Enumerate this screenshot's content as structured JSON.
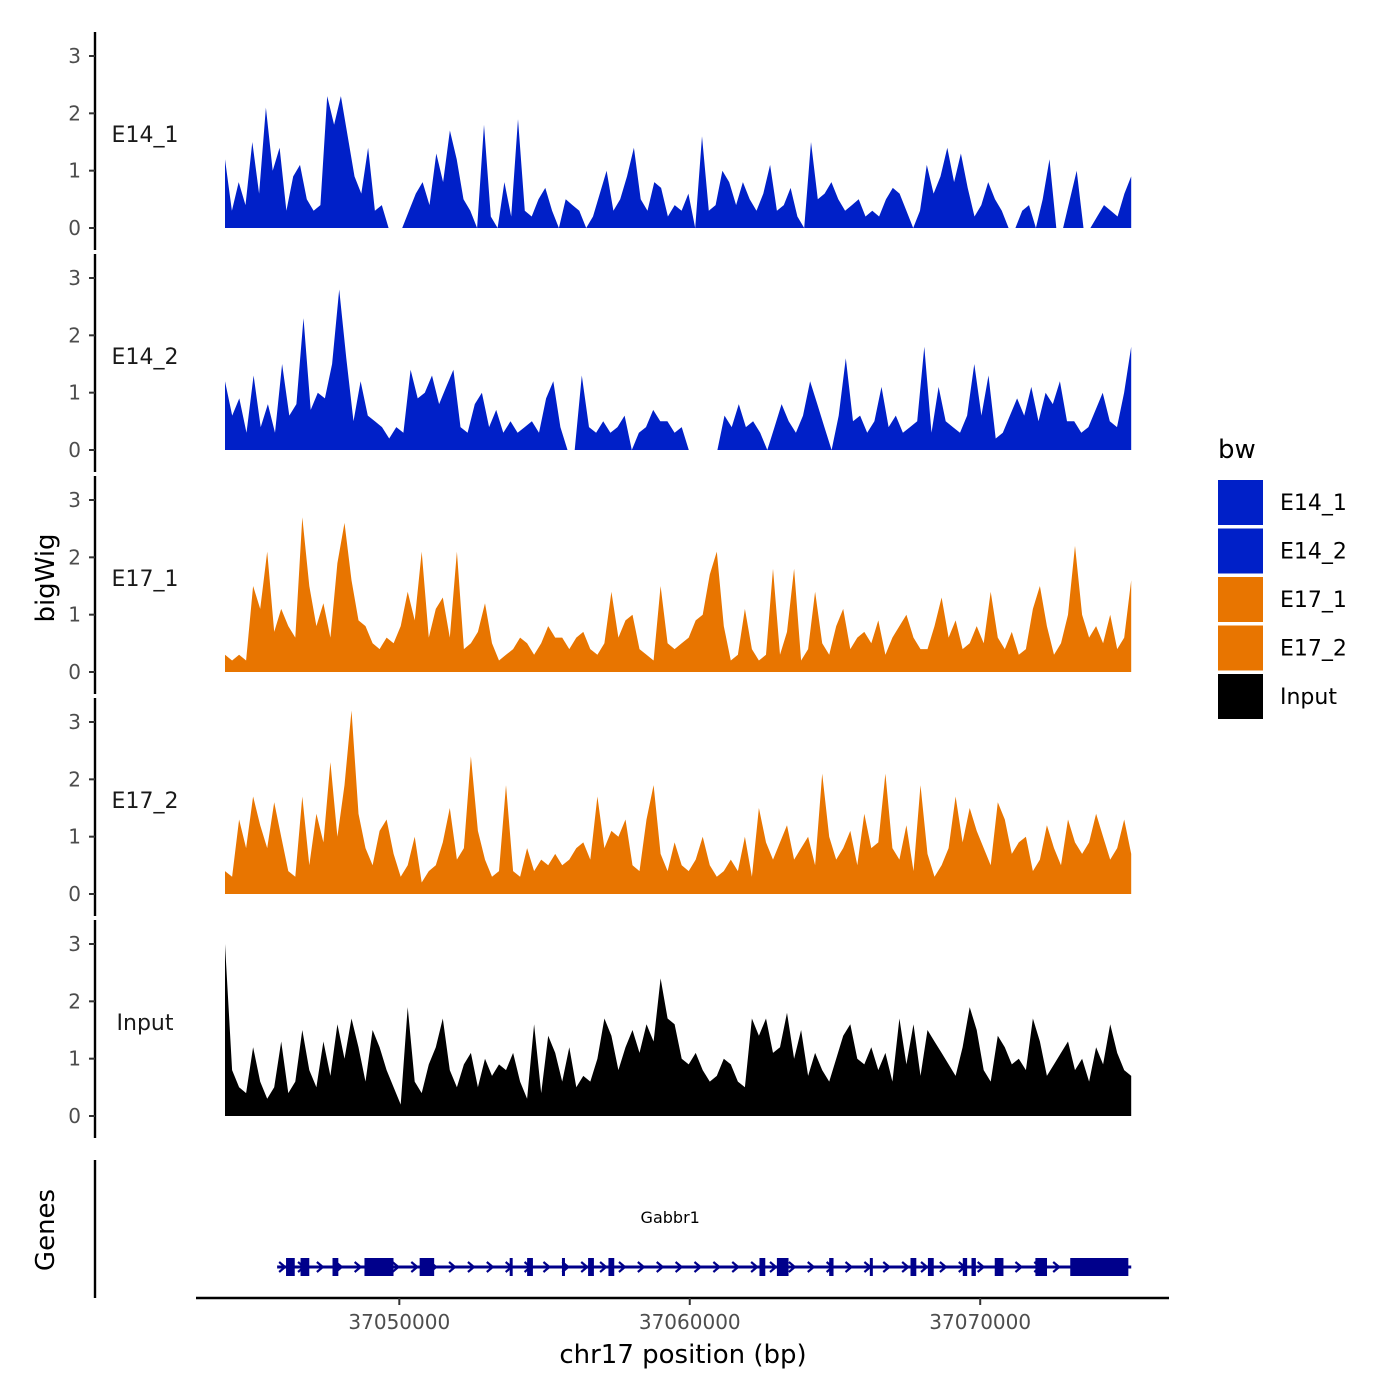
{
  "chart_data": {
    "type": "area",
    "title": "",
    "xlabel": "chr17 position (bp)",
    "ylabel": "bigWig",
    "genes_label": "Genes",
    "xlim": [
      37043000,
      37076500
    ],
    "ylim": [
      0,
      3.3
    ],
    "yticks": [
      0,
      1,
      2,
      3
    ],
    "xticks": [
      37050000,
      37060000,
      37070000
    ],
    "xtick_labels": [
      "37050000",
      "37060000",
      "37070000"
    ],
    "legend": {
      "title": "bw",
      "position": "right",
      "entries": [
        {
          "label": "E14_1",
          "color": "#0020c8"
        },
        {
          "label": "E14_2",
          "color": "#0020c8"
        },
        {
          "label": "E17_1",
          "color": "#e87500"
        },
        {
          "label": "E17_2",
          "color": "#e87500"
        },
        {
          "label": "Input",
          "color": "#000000"
        }
      ]
    },
    "x_start": 37044000,
    "x_end": 37075200,
    "series": [
      {
        "name": "E14_1",
        "color": "#0020c8",
        "values": [
          1.2,
          0.3,
          0.8,
          0.4,
          1.5,
          0.6,
          2.1,
          1.0,
          1.4,
          0.3,
          0.9,
          1.1,
          0.5,
          0.3,
          0.4,
          2.3,
          1.8,
          2.3,
          1.6,
          0.9,
          0.6,
          1.4,
          0.3,
          0.4,
          0,
          0,
          0,
          0.3,
          0.6,
          0.8,
          0.4,
          1.3,
          0.8,
          1.7,
          1.2,
          0.5,
          0.3,
          0,
          1.8,
          0.2,
          0,
          0.8,
          0.2,
          1.9,
          0.3,
          0.2,
          0.5,
          0.7,
          0.3,
          0,
          0.5,
          0.4,
          0.3,
          0,
          0.2,
          0.6,
          1.0,
          0.3,
          0.5,
          0.9,
          1.4,
          0.5,
          0.3,
          0.8,
          0.7,
          0.2,
          0.4,
          0.3,
          0.6,
          0,
          1.6,
          0.3,
          0.4,
          1.0,
          0.8,
          0.4,
          0.8,
          0.5,
          0.3,
          0.6,
          1.1,
          0.3,
          0.4,
          0.7,
          0.2,
          0,
          1.5,
          0.5,
          0.6,
          0.8,
          0.5,
          0.3,
          0.4,
          0.5,
          0.2,
          0.3,
          0.2,
          0.5,
          0.7,
          0.6,
          0.3,
          0,
          0.3,
          1.1,
          0.6,
          0.9,
          1.4,
          0.8,
          1.3,
          0.7,
          0.2,
          0.4,
          0.8,
          0.5,
          0.3,
          0,
          0,
          0.3,
          0.4,
          0,
          0.5,
          1.2,
          0,
          0,
          0.5,
          1.0,
          0,
          0,
          0.2,
          0.4,
          0.3,
          0.2,
          0.6,
          0.9
        ]
      },
      {
        "name": "E14_2",
        "color": "#0020c8",
        "values": [
          1.2,
          0.6,
          0.9,
          0.3,
          1.3,
          0.4,
          0.8,
          0.3,
          1.5,
          0.6,
          0.8,
          2.3,
          0.7,
          1.0,
          0.9,
          1.5,
          2.8,
          1.6,
          0.5,
          1.2,
          0.6,
          0.5,
          0.4,
          0.2,
          0.4,
          0.3,
          1.4,
          0.9,
          1.0,
          1.3,
          0.8,
          1.1,
          1.4,
          0.4,
          0.3,
          0.8,
          1.0,
          0.4,
          0.7,
          0.3,
          0.5,
          0.3,
          0.4,
          0.5,
          0.3,
          0.9,
          1.2,
          0.4,
          0,
          0,
          1.3,
          0.4,
          0.3,
          0.5,
          0.3,
          0.4,
          0.6,
          0,
          0.3,
          0.4,
          0.7,
          0.5,
          0.5,
          0.3,
          0.4,
          0,
          0,
          0,
          0,
          0,
          0.6,
          0.4,
          0.8,
          0.4,
          0.5,
          0.3,
          0,
          0.4,
          0.8,
          0.5,
          0.3,
          0.6,
          1.2,
          0.8,
          0.4,
          0,
          0.6,
          1.6,
          0.5,
          0.6,
          0.3,
          0.5,
          1.1,
          0.4,
          0.6,
          0.3,
          0.4,
          0.5,
          1.8,
          0.3,
          1.1,
          0.5,
          0.4,
          0.3,
          0.6,
          1.5,
          0.6,
          1.3,
          0.2,
          0.3,
          0.6,
          0.9,
          0.6,
          1.1,
          0.5,
          1.0,
          0.8,
          1.2,
          0.5,
          0.5,
          0.3,
          0.4,
          0.7,
          1.0,
          0.5,
          0.4,
          1.0,
          1.8
        ]
      },
      {
        "name": "E17_1",
        "color": "#e87500",
        "values": [
          0.3,
          0.2,
          0.3,
          0.2,
          1.5,
          1.1,
          2.1,
          0.7,
          1.1,
          0.8,
          0.6,
          2.7,
          1.5,
          0.8,
          1.2,
          0.6,
          1.9,
          2.6,
          1.6,
          0.9,
          0.8,
          0.5,
          0.4,
          0.6,
          0.5,
          0.8,
          1.4,
          0.9,
          2.1,
          0.6,
          1.1,
          1.3,
          0.6,
          2.1,
          0.4,
          0.5,
          0.7,
          1.2,
          0.5,
          0.2,
          0.3,
          0.4,
          0.6,
          0.5,
          0.3,
          0.5,
          0.8,
          0.6,
          0.6,
          0.4,
          0.6,
          0.7,
          0.4,
          0.3,
          0.5,
          1.4,
          0.6,
          0.9,
          1.0,
          0.4,
          0.3,
          0.2,
          1.5,
          0.5,
          0.4,
          0.5,
          0.6,
          0.9,
          1.0,
          1.7,
          2.1,
          0.8,
          0.2,
          0.3,
          1.1,
          0.4,
          0.2,
          0.3,
          1.8,
          0.3,
          0.7,
          1.8,
          0.2,
          0.4,
          1.4,
          0.5,
          0.3,
          0.8,
          1.1,
          0.4,
          0.6,
          0.7,
          0.5,
          0.9,
          0.3,
          0.6,
          0.8,
          1.0,
          0.6,
          0.4,
          0.4,
          0.8,
          1.3,
          0.6,
          0.9,
          0.4,
          0.5,
          0.8,
          0.5,
          1.4,
          0.6,
          0.4,
          0.7,
          0.3,
          0.4,
          1.1,
          1.5,
          0.8,
          0.3,
          0.5,
          1.0,
          2.2,
          1.0,
          0.6,
          0.8,
          0.5,
          1.0,
          0.4,
          0.6,
          1.6
        ]
      },
      {
        "name": "E17_2",
        "color": "#e87500",
        "values": [
          0.4,
          0.3,
          1.3,
          0.8,
          1.7,
          1.2,
          0.8,
          1.6,
          1.0,
          0.4,
          0.3,
          1.7,
          0.5,
          1.4,
          0.9,
          2.3,
          1.0,
          1.9,
          3.2,
          1.4,
          0.8,
          0.5,
          1.1,
          1.3,
          0.7,
          0.3,
          0.5,
          1.0,
          0.2,
          0.4,
          0.5,
          0.9,
          1.5,
          0.6,
          0.8,
          2.4,
          1.1,
          0.6,
          0.3,
          0.4,
          1.9,
          0.4,
          0.3,
          0.8,
          0.4,
          0.6,
          0.5,
          0.7,
          0.5,
          0.6,
          0.8,
          0.9,
          0.6,
          1.7,
          0.8,
          1.1,
          1.0,
          1.3,
          0.5,
          0.4,
          1.3,
          1.9,
          0.7,
          0.4,
          0.9,
          0.5,
          0.4,
          0.6,
          1.0,
          0.5,
          0.3,
          0.4,
          0.6,
          0.4,
          1.0,
          0.3,
          1.5,
          0.9,
          0.6,
          0.9,
          1.2,
          0.6,
          0.8,
          1.0,
          0.5,
          2.1,
          1.0,
          0.6,
          0.8,
          1.1,
          0.5,
          1.4,
          0.8,
          0.9,
          2.1,
          0.8,
          0.6,
          1.2,
          0.4,
          1.9,
          0.7,
          0.3,
          0.5,
          0.8,
          1.7,
          0.9,
          1.5,
          1.1,
          0.8,
          0.5,
          1.6,
          1.3,
          0.7,
          0.9,
          1.0,
          0.4,
          0.6,
          1.2,
          0.8,
          0.5,
          1.3,
          0.9,
          0.7,
          0.9,
          1.4,
          1.0,
          0.6,
          0.8,
          1.3,
          0.7
        ]
      },
      {
        "name": "Input",
        "color": "#000000",
        "values": [
          3.0,
          0.8,
          0.5,
          0.4,
          1.2,
          0.6,
          0.3,
          0.5,
          1.3,
          0.4,
          0.6,
          1.5,
          0.8,
          0.5,
          1.3,
          0.7,
          1.6,
          1.0,
          1.7,
          1.2,
          0.6,
          1.5,
          1.2,
          0.8,
          0.5,
          0.2,
          1.9,
          0.6,
          0.4,
          0.9,
          1.2,
          1.7,
          0.8,
          0.5,
          0.9,
          1.1,
          0.5,
          1.0,
          0.7,
          0.9,
          0.8,
          1.1,
          0.6,
          0.3,
          1.6,
          0.4,
          1.4,
          1.1,
          0.6,
          1.2,
          0.5,
          0.7,
          0.6,
          1.0,
          1.7,
          1.4,
          0.8,
          1.2,
          1.5,
          1.1,
          1.6,
          1.3,
          2.4,
          1.7,
          1.6,
          1.0,
          0.9,
          1.1,
          0.8,
          0.6,
          0.7,
          1.0,
          0.9,
          0.6,
          0.5,
          1.7,
          1.4,
          1.7,
          1.1,
          1.2,
          1.8,
          1.0,
          1.5,
          0.7,
          1.1,
          0.8,
          0.6,
          1.0,
          1.4,
          1.6,
          1.0,
          0.9,
          1.2,
          0.8,
          1.1,
          0.6,
          1.7,
          0.9,
          1.6,
          0.7,
          1.5,
          1.3,
          1.1,
          0.9,
          0.7,
          1.2,
          1.9,
          1.5,
          0.8,
          0.6,
          1.4,
          1.2,
          0.9,
          1.0,
          0.8,
          1.7,
          1.3,
          0.7,
          0.9,
          1.1,
          1.3,
          0.8,
          1.0,
          0.6,
          1.2,
          0.9,
          1.6,
          1.1,
          0.8,
          0.7
        ]
      }
    ],
    "genes": [
      {
        "name": "Gabbr1",
        "start": 37046000,
        "end": 37075200,
        "strand": "+",
        "color": "#00008b",
        "exons": [
          [
            37046100,
            37046400
          ],
          [
            37046600,
            37046900
          ],
          [
            37047700,
            37047900
          ],
          [
            37048800,
            37049800
          ],
          [
            37050700,
            37051200
          ],
          [
            37053800,
            37053900
          ],
          [
            37054400,
            37054600
          ],
          [
            37055600,
            37055700
          ],
          [
            37056500,
            37056700
          ],
          [
            37057200,
            37057400
          ],
          [
            37062400,
            37062600
          ],
          [
            37063000,
            37063400
          ],
          [
            37064800,
            37064950
          ],
          [
            37066200,
            37066300
          ],
          [
            37067600,
            37067800
          ],
          [
            37068200,
            37068400
          ],
          [
            37069400,
            37069550
          ],
          [
            37069700,
            37069850
          ],
          [
            37070500,
            37070800
          ],
          [
            37071900,
            37072300
          ],
          [
            37073100,
            37075100
          ]
        ]
      }
    ]
  }
}
